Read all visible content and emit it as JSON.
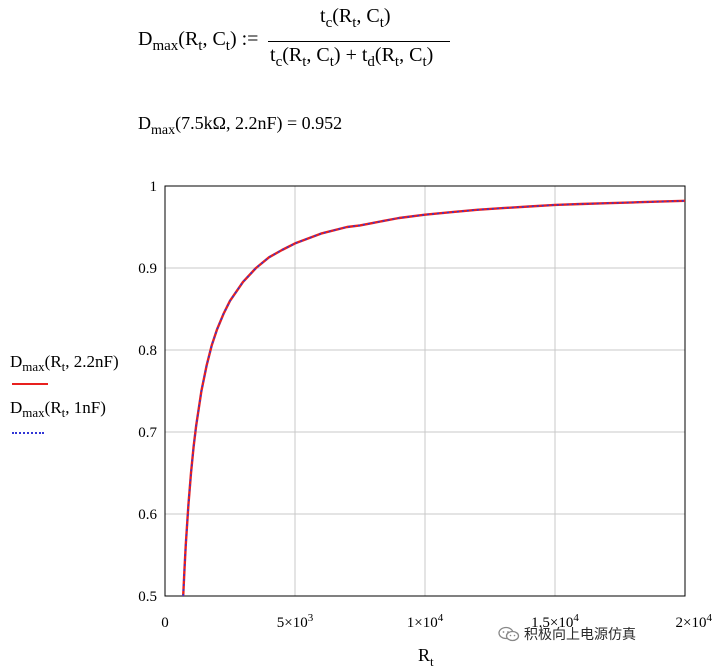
{
  "equations": {
    "def_lhs": {
      "main": "D",
      "sub": "max",
      "args": "(R",
      "sub2": "t",
      "mid": ", C",
      "sub3": "t",
      "end": ") :="
    },
    "def_numerator": {
      "main": "t",
      "sub": "c",
      "args": "(R",
      "sub2": "t",
      "mid": ", C",
      "sub3": "t",
      "end": ")"
    },
    "def_denominator": {
      "main": "t",
      "sub": "c",
      "args": "(R",
      "sub2": "t",
      "mid": ", C",
      "sub3": "t",
      "mid2": ") + t",
      "sub4": "d",
      "args2": "(R",
      "sub5": "t",
      "mid3": ", C",
      "sub6": "t",
      "end": ")"
    },
    "eval": {
      "main": "D",
      "sub": "max",
      "rest": "(7.5kΩ, 2.2nF) = 0.952"
    }
  },
  "legend": [
    {
      "main": "D",
      "sub": "max",
      "rest1": "(R",
      "sub2": "t",
      "rest2": ", 2.2nF)",
      "color": "#e8201e",
      "style": "solid"
    },
    {
      "main": "D",
      "sub": "max",
      "rest1": "(R",
      "sub2": "t",
      "rest2": ", 1nF)",
      "color": "#3236d6",
      "style": "dotted"
    }
  ],
  "watermark": {
    "text": "积极向上电源仿真",
    "icon": "wechat-icon"
  },
  "chart_data": {
    "type": "line",
    "xlabel": "R",
    "xlabel_sub": "t",
    "xlim": [
      0,
      20000
    ],
    "ylim": [
      0.5,
      1
    ],
    "grid": true,
    "x_ticks": [
      {
        "value": 0,
        "label": "0"
      },
      {
        "value": 5000,
        "label": "5×10",
        "exp": "3"
      },
      {
        "value": 10000,
        "label": "1×10",
        "exp": "4"
      },
      {
        "value": 15000,
        "label": "1.5×10",
        "exp": "4"
      },
      {
        "value": 20000,
        "label": "2×10",
        "exp": "4"
      }
    ],
    "y_ticks": [
      {
        "value": 0.5,
        "label": "0.5"
      },
      {
        "value": 0.6,
        "label": "0.6"
      },
      {
        "value": 0.7,
        "label": "0.7"
      },
      {
        "value": 0.8,
        "label": "0.8"
      },
      {
        "value": 0.9,
        "label": "0.9"
      },
      {
        "value": 1,
        "label": "1"
      }
    ],
    "series": [
      {
        "name": "Dmax(Rt, 2.2nF)",
        "color": "#e8201e",
        "style": "solid",
        "x": [
          700,
          750,
          800,
          900,
          1000,
          1100,
          1200,
          1400,
          1600,
          1800,
          2000,
          2250,
          2500,
          3000,
          3500,
          4000,
          4500,
          5000,
          6000,
          7000,
          7500,
          8000,
          9000,
          10000,
          11000,
          12000,
          13000,
          14000,
          15000,
          16000,
          17000,
          18000,
          19000,
          20000
        ],
        "y": [
          0.5,
          0.533,
          0.563,
          0.611,
          0.65,
          0.682,
          0.708,
          0.75,
          0.781,
          0.806,
          0.825,
          0.844,
          0.86,
          0.883,
          0.9,
          0.913,
          0.922,
          0.93,
          0.942,
          0.95,
          0.952,
          0.955,
          0.961,
          0.965,
          0.968,
          0.971,
          0.973,
          0.975,
          0.977,
          0.978,
          0.979,
          0.98,
          0.981,
          0.982
        ]
      },
      {
        "name": "Dmax(Rt, 1nF)",
        "color": "#3236d6",
        "style": "dotted",
        "x": [
          700,
          750,
          800,
          900,
          1000,
          1100,
          1200,
          1400,
          1600,
          1800,
          2000,
          2250,
          2500,
          3000,
          3500,
          4000,
          4500,
          5000,
          6000,
          7000,
          7500,
          8000,
          9000,
          10000,
          11000,
          12000,
          13000,
          14000,
          15000,
          16000,
          17000,
          18000,
          19000,
          20000
        ],
        "y": [
          0.5,
          0.533,
          0.563,
          0.611,
          0.65,
          0.682,
          0.708,
          0.75,
          0.781,
          0.806,
          0.825,
          0.844,
          0.86,
          0.883,
          0.9,
          0.913,
          0.922,
          0.93,
          0.942,
          0.95,
          0.952,
          0.955,
          0.961,
          0.965,
          0.968,
          0.971,
          0.973,
          0.975,
          0.977,
          0.978,
          0.979,
          0.98,
          0.981,
          0.982
        ]
      }
    ]
  }
}
